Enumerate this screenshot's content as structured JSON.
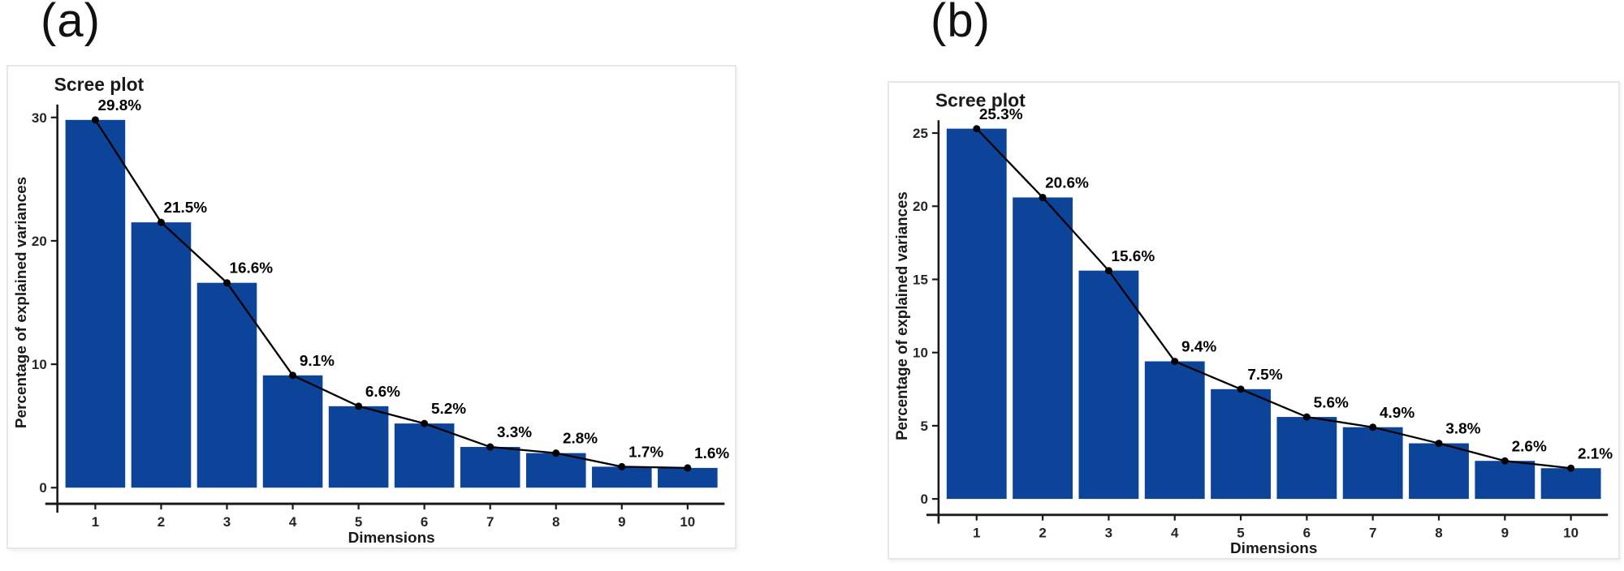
{
  "figure": {
    "panels": [
      {
        "label": "(a)"
      },
      {
        "label": "(b)"
      }
    ]
  },
  "chart_data": [
    {
      "panel": "(a)",
      "type": "bar",
      "overlay": "line",
      "title": "Scree plot",
      "xlabel": "Dimensions",
      "ylabel": "Percentage of explained variances",
      "categories": [
        "1",
        "2",
        "3",
        "4",
        "5",
        "6",
        "7",
        "8",
        "9",
        "10"
      ],
      "values": [
        29.8,
        21.5,
        16.6,
        9.1,
        6.6,
        5.2,
        3.3,
        2.8,
        1.7,
        1.6
      ],
      "point_labels": [
        "29.8%",
        "21.5%",
        "16.6%",
        "9.1%",
        "6.6%",
        "5.2%",
        "3.3%",
        "2.8%",
        "1.7%",
        "1.6%"
      ],
      "yticks": [
        0,
        10,
        20,
        30
      ],
      "ylim": [
        0,
        31.5
      ],
      "grid": false,
      "legend": "none",
      "bar_color": "#0c4499",
      "line_color": "#000000"
    },
    {
      "panel": "(b)",
      "type": "bar",
      "overlay": "line",
      "title": "Scree plot",
      "xlabel": "Dimensions",
      "ylabel": "Percentage of explained variances",
      "categories": [
        "1",
        "2",
        "3",
        "4",
        "5",
        "6",
        "7",
        "8",
        "9",
        "10"
      ],
      "values": [
        25.3,
        20.6,
        15.6,
        9.4,
        7.5,
        5.6,
        4.9,
        3.8,
        2.6,
        2.1
      ],
      "point_labels": [
        "25.3%",
        "20.6%",
        "15.6%",
        "9.4%",
        "7.5%",
        "5.6%",
        "4.9%",
        "3.8%",
        "2.6%",
        "2.1%"
      ],
      "yticks": [
        0,
        5,
        10,
        15,
        20,
        25
      ],
      "ylim": [
        0,
        26.5
      ],
      "grid": false,
      "legend": "none",
      "bar_color": "#0c4499",
      "line_color": "#000000"
    }
  ]
}
